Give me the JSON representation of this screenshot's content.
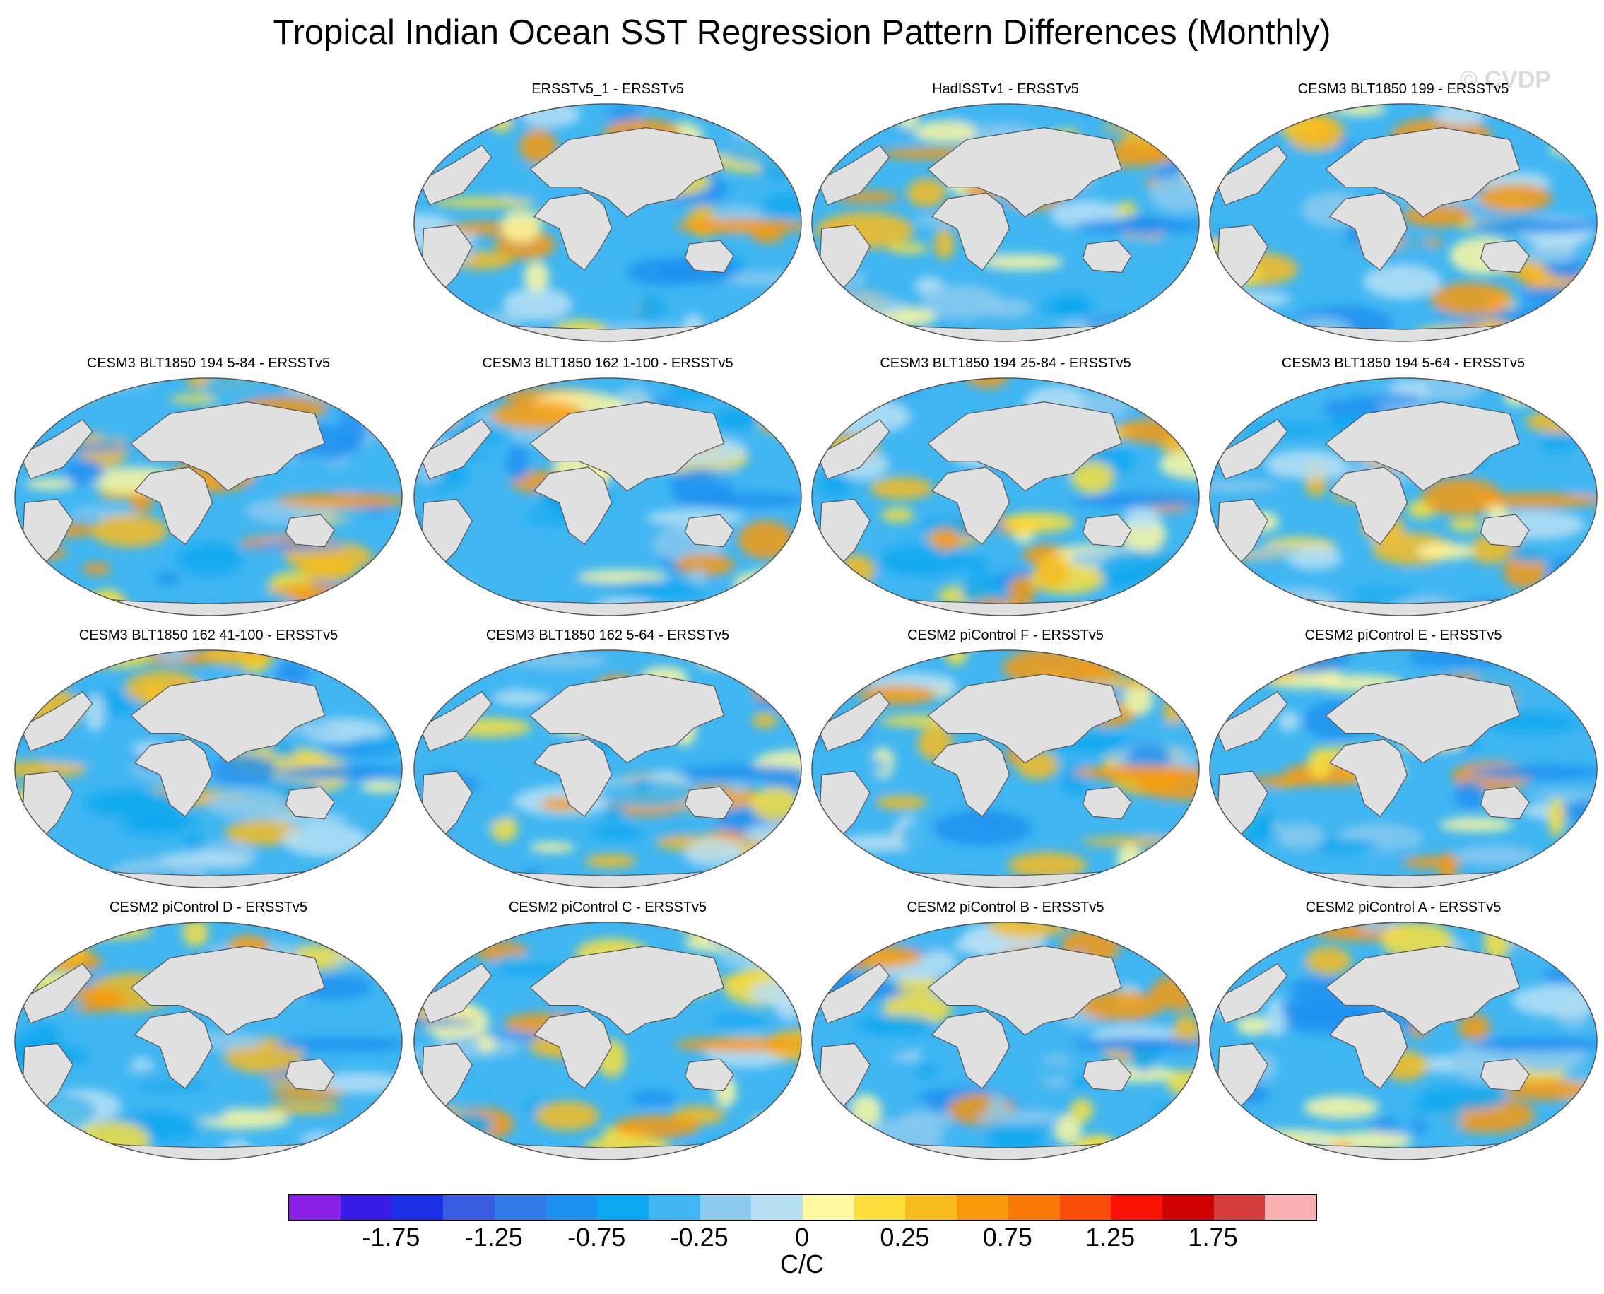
{
  "title": "Tropical Indian Ocean SST Regression Pattern Differences (Monthly)",
  "watermark": "© CVDP",
  "panels": [
    {
      "label": "ERSSTv5_1 - ERSSTv5"
    },
    {
      "label": "HadISSTv1 - ERSSTv5"
    },
    {
      "label": "CESM3 BLT1850 199 - ERSSTv5"
    },
    {
      "label": "CESM3 BLT1850 194 5-84 - ERSSTv5"
    },
    {
      "label": "CESM3 BLT1850 162 1-100 - ERSSTv5"
    },
    {
      "label": "CESM3 BLT1850 194 25-84 - ERSSTv5"
    },
    {
      "label": "CESM3 BLT1850 194 5-64 - ERSSTv5"
    },
    {
      "label": "CESM3 BLT1850 162 41-100 - ERSSTv5"
    },
    {
      "label": "CESM3 BLT1850 162 5-64 - ERSSTv5"
    },
    {
      "label": "CESM2 piControl F - ERSSTv5"
    },
    {
      "label": "CESM2 piControl E - ERSSTv5"
    },
    {
      "label": "CESM2 piControl D - ERSSTv5"
    },
    {
      "label": "CESM2 piControl C - ERSSTv5"
    },
    {
      "label": "CESM2 piControl B - ERSSTv5"
    },
    {
      "label": "CESM2 piControl A - ERSSTv5"
    }
  ],
  "colorbar": {
    "colors": [
      "#8a1fe6",
      "#3a1ae6",
      "#1a2fe6",
      "#3a5ce0",
      "#2f7ae8",
      "#1e90f0",
      "#0aa8f0",
      "#3fb6f2",
      "#8ccaee",
      "#b8e0f5",
      "#fff8a0",
      "#fadf3c",
      "#f8bc1e",
      "#f89a0a",
      "#f87808",
      "#f84c08",
      "#f81000",
      "#d00000",
      "#d43c3c",
      "#f8b0b0"
    ],
    "tick_labels": [
      "-1.75",
      "-1.25",
      "-0.75",
      "-0.25",
      "0",
      "0.25",
      "0.75",
      "1.25",
      "1.75"
    ],
    "units": "C/C"
  },
  "map_colors": {
    "land": "#e0e0e0",
    "coast": "#555555",
    "ocean_base": "#3fb6f2"
  }
}
